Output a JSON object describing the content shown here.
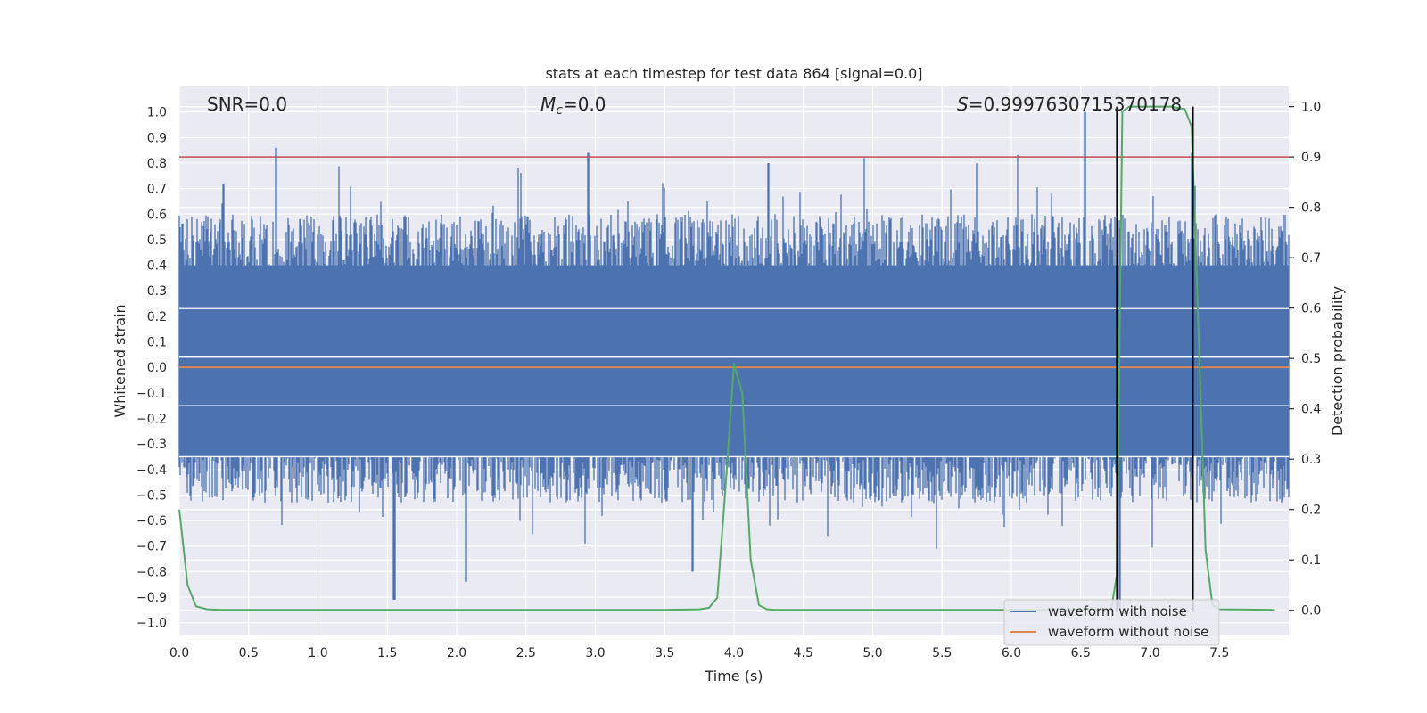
{
  "chart_data": {
    "type": "line",
    "title": "stats at each timestep for test data 864 [signal=0.0]",
    "xlabel": "Time (s)",
    "ylabel": "Whitened strain",
    "y2label": "Detection probability",
    "xlim": [
      0.0,
      8.0
    ],
    "ylim": [
      -1.05,
      1.1
    ],
    "y2lim": [
      -0.05,
      1.04
    ],
    "x_ticks": [
      "0.0",
      "0.5",
      "1.0",
      "1.5",
      "2.0",
      "2.5",
      "3.0",
      "3.5",
      "4.0",
      "4.5",
      "5.0",
      "5.5",
      "6.0",
      "6.5",
      "7.0",
      "7.5"
    ],
    "y_ticks": [
      "−1.0",
      "−0.9",
      "−0.8",
      "−0.7",
      "−0.6",
      "−0.5",
      "−0.4",
      "−0.3",
      "−0.2",
      "−0.1",
      "0.0",
      "0.1",
      "0.2",
      "0.3",
      "0.4",
      "0.5",
      "0.6",
      "0.7",
      "0.8",
      "0.9",
      "1.0"
    ],
    "y2_ticks": [
      "0.0",
      "0.1",
      "0.2",
      "0.3",
      "0.4",
      "0.5",
      "0.6",
      "0.7",
      "0.8",
      "0.9",
      "1.0"
    ],
    "grid": true,
    "legend_position": "lower-right",
    "annotations": {
      "snr": "SNR=0.0",
      "mc_symbol": "M",
      "mc_sub": "c",
      "mc_value": "=0.0",
      "s_symbol": "S",
      "s_value": "=0.9997630715370178"
    },
    "series": [
      {
        "name": "waveform with noise",
        "color": "#4c72b0",
        "axis": "left",
        "description_band": [
          -0.35,
          0.4
        ],
        "peaks": [
          {
            "x": 0.7,
            "y": 0.86
          },
          {
            "x": 2.95,
            "y": 0.84
          },
          {
            "x": 6.53,
            "y": 1.0
          },
          {
            "x": 7.3,
            "y": 0.84
          },
          {
            "x": 0.32,
            "y": 0.72
          },
          {
            "x": 4.25,
            "y": 0.8
          },
          {
            "x": 5.75,
            "y": 0.8
          },
          {
            "x": 1.55,
            "y": -0.91
          },
          {
            "x": 2.07,
            "y": -0.84
          },
          {
            "x": 3.7,
            "y": -0.8
          },
          {
            "x": 6.78,
            "y": -0.94
          }
        ]
      },
      {
        "name": "waveform without noise",
        "color": "#dd8452",
        "axis": "left",
        "y": 0.0
      },
      {
        "name": "detection probability",
        "color": "#55a868",
        "axis": "right",
        "x": [
          0.0,
          0.06,
          0.12,
          0.2,
          0.3,
          0.5,
          1.0,
          2.0,
          3.0,
          3.5,
          3.75,
          3.82,
          3.88,
          3.94,
          4.0,
          4.06,
          4.12,
          4.18,
          4.24,
          4.3,
          5.0,
          6.0,
          6.6,
          6.72,
          6.76,
          6.8,
          6.85,
          7.0,
          7.15,
          7.25,
          7.3,
          7.35,
          7.4,
          7.45,
          7.5,
          7.9
        ],
        "y": [
          0.2,
          0.05,
          0.008,
          0.002,
          0.001,
          0.001,
          0.001,
          0.001,
          0.001,
          0.001,
          0.002,
          0.005,
          0.025,
          0.25,
          0.49,
          0.43,
          0.1,
          0.01,
          0.002,
          0.001,
          0.001,
          0.001,
          0.001,
          0.002,
          0.07,
          0.99,
          1.0,
          1.0,
          1.0,
          0.995,
          0.96,
          0.55,
          0.12,
          0.01,
          0.002,
          0.001
        ]
      }
    ],
    "threshold_line": {
      "axis": "right",
      "y": 0.9,
      "color": "#c44e52"
    },
    "vertical_lines": [
      6.76,
      7.31
    ],
    "legend": [
      "waveform with noise",
      "waveform without noise"
    ]
  }
}
